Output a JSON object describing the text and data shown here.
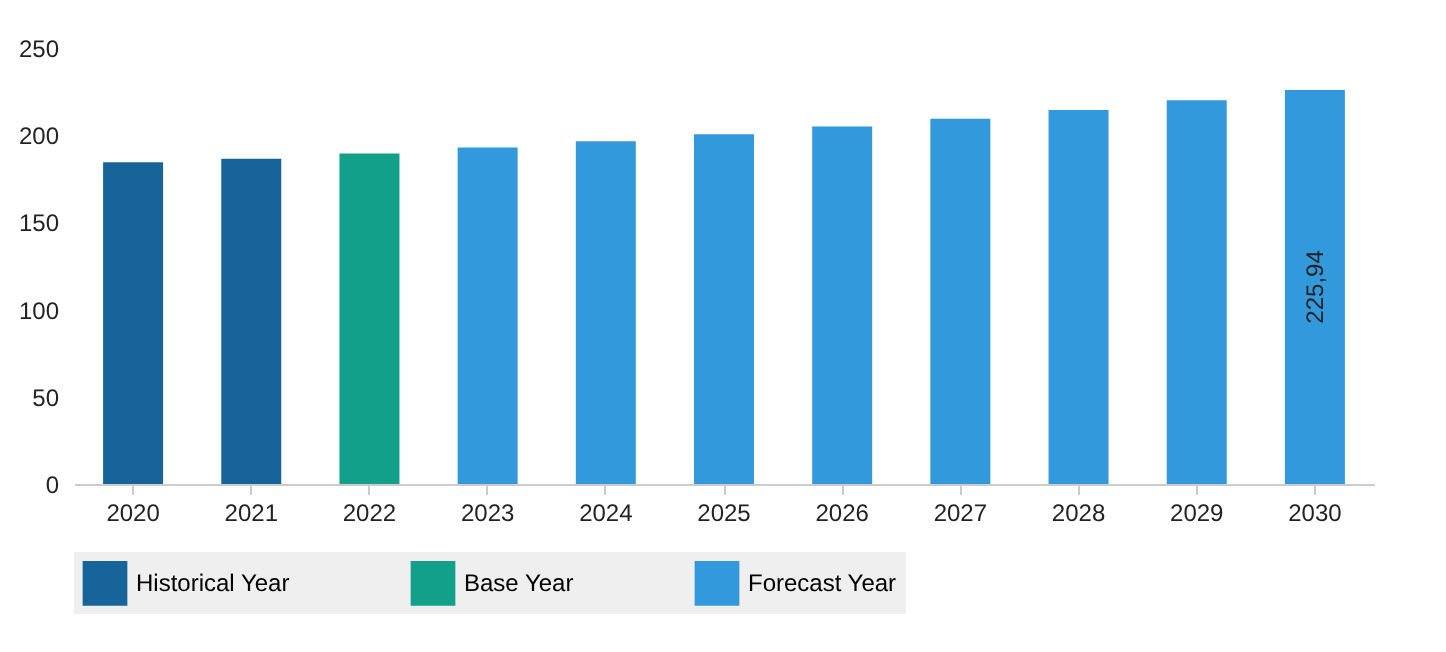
{
  "chart_data": {
    "type": "bar",
    "categories": [
      "2020",
      "2021",
      "2022",
      "2023",
      "2024",
      "2025",
      "2026",
      "2027",
      "2028",
      "2029",
      "2030"
    ],
    "series": [
      {
        "name": "Historical Year",
        "color": "#17649a",
        "values": [
          184.5,
          186.5,
          null,
          null,
          null,
          null,
          null,
          null,
          null,
          null,
          null
        ]
      },
      {
        "name": "Base Year",
        "color": "#13a08a",
        "values": [
          null,
          null,
          189.5,
          null,
          null,
          null,
          null,
          null,
          null,
          null,
          null
        ]
      },
      {
        "name": "Forecast Year",
        "color": "#3399dd",
        "values": [
          null,
          null,
          null,
          193,
          196.5,
          200.5,
          205,
          209.5,
          214.5,
          220,
          225.94
        ],
        "value_labels": [
          null,
          null,
          null,
          null,
          null,
          null,
          null,
          null,
          null,
          null,
          "225,94"
        ]
      }
    ],
    "ylim": [
      0,
      250
    ],
    "yticks": [
      0,
      50,
      100,
      150,
      200,
      250
    ],
    "grid": false,
    "legend": "bottom"
  }
}
